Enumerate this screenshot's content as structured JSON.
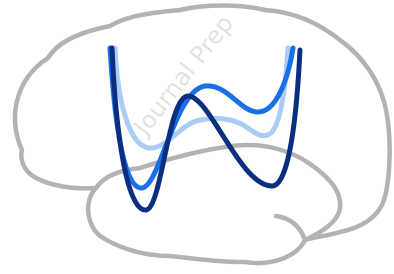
{
  "watermark": "Journal Prep"
}
